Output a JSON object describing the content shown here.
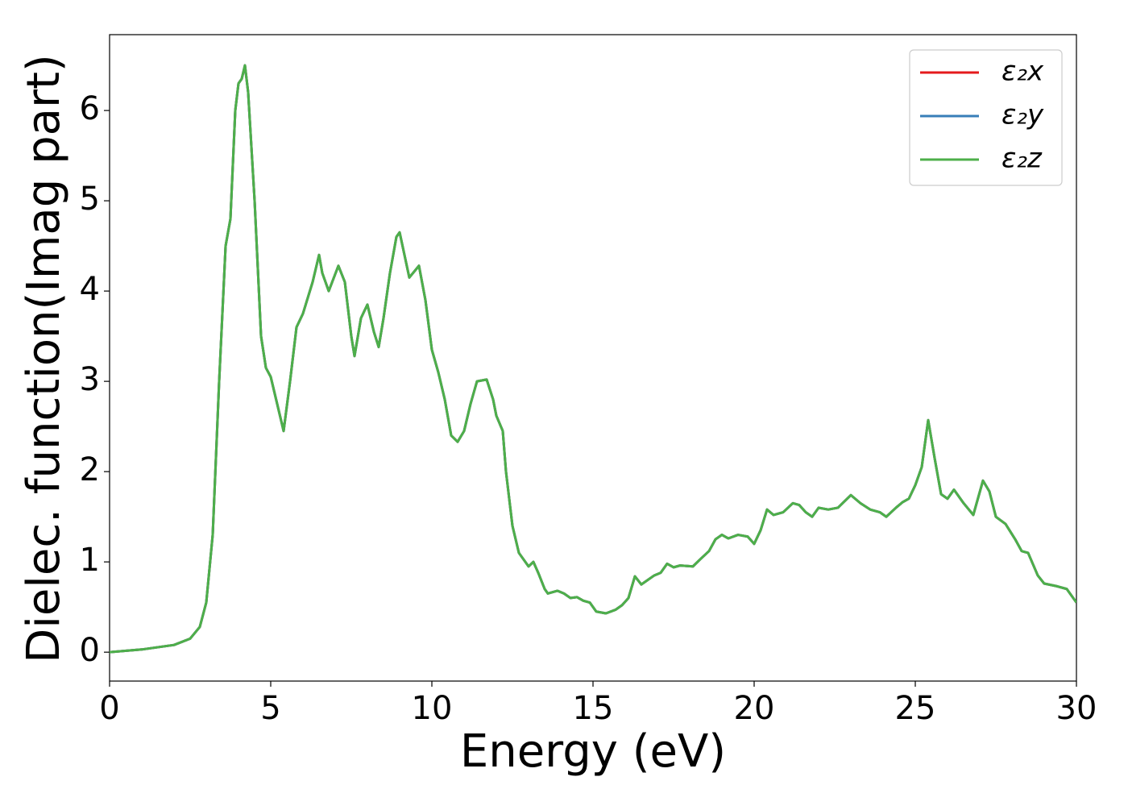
{
  "chart_data": {
    "type": "line",
    "xlabel": "Energy (eV)",
    "ylabel": "Dielec. function(Imag part)",
    "xlim": [
      0,
      30
    ],
    "ylim": [
      -0.32,
      6.84
    ],
    "xticks": [
      0,
      5,
      10,
      15,
      20,
      25,
      30
    ],
    "yticks": [
      0,
      1,
      2,
      3,
      4,
      5,
      6
    ],
    "legend": "upper right",
    "grid": false,
    "x": [
      0,
      1,
      2,
      2.5,
      2.8,
      3.0,
      3.2,
      3.4,
      3.6,
      3.75,
      3.9,
      4.0,
      4.1,
      4.2,
      4.3,
      4.5,
      4.7,
      4.85,
      5.0,
      5.2,
      5.4,
      5.6,
      5.8,
      6.0,
      6.3,
      6.5,
      6.6,
      6.8,
      7.1,
      7.3,
      7.5,
      7.6,
      7.8,
      8.0,
      8.2,
      8.35,
      8.5,
      8.7,
      8.9,
      9.0,
      9.15,
      9.3,
      9.6,
      9.8,
      10.0,
      10.2,
      10.4,
      10.6,
      10.8,
      11.0,
      11.2,
      11.4,
      11.7,
      11.9,
      12.0,
      12.2,
      12.3,
      12.5,
      12.7,
      13.0,
      13.15,
      13.3,
      13.5,
      13.6,
      13.9,
      14.1,
      14.3,
      14.5,
      14.7,
      14.9,
      15.1,
      15.4,
      15.7,
      15.9,
      16.1,
      16.3,
      16.5,
      16.9,
      17.1,
      17.3,
      17.5,
      17.7,
      18.1,
      18.3,
      18.6,
      18.8,
      19.0,
      19.2,
      19.5,
      19.8,
      20.0,
      20.2,
      20.4,
      20.6,
      20.9,
      21.2,
      21.4,
      21.6,
      21.8,
      22.0,
      22.3,
      22.6,
      23.0,
      23.3,
      23.6,
      23.9,
      24.1,
      24.4,
      24.6,
      24.8,
      25.0,
      25.2,
      25.4,
      25.6,
      25.8,
      26.0,
      26.2,
      26.5,
      26.8,
      27.1,
      27.3,
      27.5,
      27.8,
      28.1,
      28.3,
      28.5,
      28.8,
      29.0,
      29.4,
      29.7,
      30.0
    ],
    "series": [
      {
        "name": "ε₂x",
        "color": "#e41a1c",
        "values": [
          0.0,
          0.03,
          0.08,
          0.15,
          0.28,
          0.55,
          1.3,
          3.0,
          4.5,
          4.8,
          6.0,
          6.3,
          6.35,
          6.5,
          6.2,
          5.0,
          3.5,
          3.15,
          3.05,
          2.75,
          2.45,
          3.0,
          3.6,
          3.75,
          4.1,
          4.4,
          4.2,
          4.0,
          4.28,
          4.1,
          3.5,
          3.28,
          3.7,
          3.85,
          3.55,
          3.38,
          3.7,
          4.2,
          4.6,
          4.65,
          4.4,
          4.15,
          4.28,
          3.9,
          3.35,
          3.1,
          2.8,
          2.4,
          2.33,
          2.45,
          2.75,
          3.0,
          3.02,
          2.8,
          2.62,
          2.45,
          2.0,
          1.4,
          1.1,
          0.95,
          1.0,
          0.88,
          0.7,
          0.65,
          0.68,
          0.65,
          0.6,
          0.61,
          0.57,
          0.55,
          0.45,
          0.43,
          0.47,
          0.52,
          0.6,
          0.84,
          0.75,
          0.85,
          0.88,
          0.98,
          0.94,
          0.96,
          0.95,
          1.02,
          1.12,
          1.25,
          1.3,
          1.26,
          1.3,
          1.28,
          1.2,
          1.35,
          1.58,
          1.52,
          1.55,
          1.65,
          1.63,
          1.55,
          1.5,
          1.6,
          1.58,
          1.6,
          1.74,
          1.65,
          1.58,
          1.55,
          1.5,
          1.6,
          1.66,
          1.7,
          1.85,
          2.05,
          2.57,
          2.15,
          1.75,
          1.7,
          1.8,
          1.65,
          1.52,
          1.9,
          1.78,
          1.5,
          1.42,
          1.25,
          1.12,
          1.1,
          0.85,
          0.76,
          0.73,
          0.7,
          0.55
        ]
      },
      {
        "name": "ε₂y",
        "color": "#377eb8",
        "values": [
          0.0,
          0.03,
          0.08,
          0.15,
          0.28,
          0.55,
          1.3,
          3.0,
          4.5,
          4.8,
          6.0,
          6.3,
          6.35,
          6.5,
          6.2,
          5.0,
          3.5,
          3.15,
          3.05,
          2.75,
          2.45,
          3.0,
          3.6,
          3.75,
          4.1,
          4.4,
          4.2,
          4.0,
          4.28,
          4.1,
          3.5,
          3.28,
          3.7,
          3.85,
          3.55,
          3.38,
          3.7,
          4.2,
          4.6,
          4.65,
          4.4,
          4.15,
          4.28,
          3.9,
          3.35,
          3.1,
          2.8,
          2.4,
          2.33,
          2.45,
          2.75,
          3.0,
          3.02,
          2.8,
          2.62,
          2.45,
          2.0,
          1.4,
          1.1,
          0.95,
          1.0,
          0.88,
          0.7,
          0.65,
          0.68,
          0.65,
          0.6,
          0.61,
          0.57,
          0.55,
          0.45,
          0.43,
          0.47,
          0.52,
          0.6,
          0.84,
          0.75,
          0.85,
          0.88,
          0.98,
          0.94,
          0.96,
          0.95,
          1.02,
          1.12,
          1.25,
          1.3,
          1.26,
          1.3,
          1.28,
          1.2,
          1.35,
          1.58,
          1.52,
          1.55,
          1.65,
          1.63,
          1.55,
          1.5,
          1.6,
          1.58,
          1.6,
          1.74,
          1.65,
          1.58,
          1.55,
          1.5,
          1.6,
          1.66,
          1.7,
          1.85,
          2.05,
          2.57,
          2.15,
          1.75,
          1.7,
          1.8,
          1.65,
          1.52,
          1.9,
          1.78,
          1.5,
          1.42,
          1.25,
          1.12,
          1.1,
          0.85,
          0.76,
          0.73,
          0.7,
          0.55
        ]
      },
      {
        "name": "ε₂z",
        "color": "#4daf4a",
        "values": [
          0.0,
          0.03,
          0.08,
          0.15,
          0.28,
          0.55,
          1.3,
          3.0,
          4.5,
          4.8,
          6.0,
          6.3,
          6.35,
          6.5,
          6.2,
          5.0,
          3.5,
          3.15,
          3.05,
          2.75,
          2.45,
          3.0,
          3.6,
          3.75,
          4.1,
          4.4,
          4.2,
          4.0,
          4.28,
          4.1,
          3.5,
          3.28,
          3.7,
          3.85,
          3.55,
          3.38,
          3.7,
          4.2,
          4.6,
          4.65,
          4.4,
          4.15,
          4.28,
          3.9,
          3.35,
          3.1,
          2.8,
          2.4,
          2.33,
          2.45,
          2.75,
          3.0,
          3.02,
          2.8,
          2.62,
          2.45,
          2.0,
          1.4,
          1.1,
          0.95,
          1.0,
          0.88,
          0.7,
          0.65,
          0.68,
          0.65,
          0.6,
          0.61,
          0.57,
          0.55,
          0.45,
          0.43,
          0.47,
          0.52,
          0.6,
          0.84,
          0.75,
          0.85,
          0.88,
          0.98,
          0.94,
          0.96,
          0.95,
          1.02,
          1.12,
          1.25,
          1.3,
          1.26,
          1.3,
          1.28,
          1.2,
          1.35,
          1.58,
          1.52,
          1.55,
          1.65,
          1.63,
          1.55,
          1.5,
          1.6,
          1.58,
          1.6,
          1.74,
          1.65,
          1.58,
          1.55,
          1.5,
          1.6,
          1.66,
          1.7,
          1.85,
          2.05,
          2.57,
          2.15,
          1.75,
          1.7,
          1.8,
          1.65,
          1.52,
          1.9,
          1.78,
          1.5,
          1.42,
          1.25,
          1.12,
          1.1,
          0.85,
          0.76,
          0.73,
          0.7,
          0.55
        ]
      }
    ]
  }
}
